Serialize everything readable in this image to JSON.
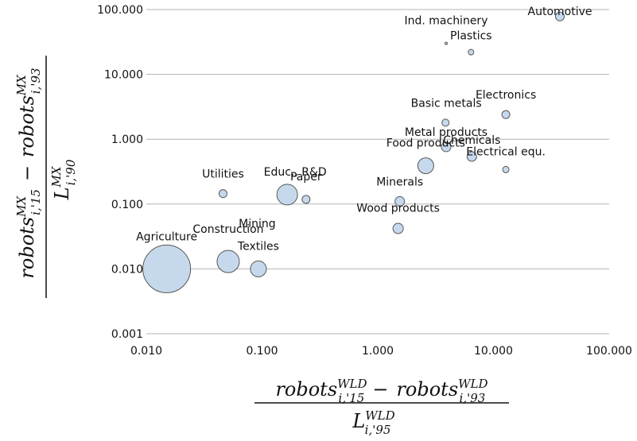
{
  "chart_data": {
    "type": "scatter",
    "x_scale": "log",
    "y_scale": "log",
    "xlim": [
      0.01,
      100
    ],
    "ylim": [
      0.001,
      100
    ],
    "x_ticks": [
      0.01,
      0.1,
      1,
      10,
      100
    ],
    "y_ticks": [
      0.001,
      0.01,
      0.1,
      1,
      10,
      100
    ],
    "x_tick_labels": [
      "0.010",
      "0.100",
      "1.000",
      "10.000",
      "100.000"
    ],
    "y_tick_labels": [
      "0.001",
      "0.010",
      "0.100",
      "1.000",
      "10.000",
      "100.000"
    ],
    "grid": "horizontal",
    "bubble_fill": "#c6d9ec",
    "bubble_stroke": "#555555",
    "grid_color": "#b3b3b3",
    "xlabel": {
      "numerator": {
        "term1": "robots",
        "term1_sup": "WLD",
        "term1_sub": "i,'15",
        "minus": "−",
        "term2": "robots",
        "term2_sup": "WLD",
        "term2_sub": "i,'93"
      },
      "denominator": {
        "term": "L",
        "sup": "WLD",
        "sub": "i,'95"
      }
    },
    "ylabel": {
      "numerator": {
        "term1": "robots",
        "term1_sup": "MX",
        "term1_sub": "i,'15",
        "minus": "−",
        "term2": "robots",
        "term2_sup": "MX",
        "term2_sub": "i,'93"
      },
      "denominator": {
        "term": "L",
        "sup": "MX",
        "sub": "i,'90"
      }
    },
    "points": [
      {
        "label": "Agriculture",
        "x": 0.015,
        "y": 0.01,
        "size": 30
      },
      {
        "label": "Construction",
        "x": 0.051,
        "y": 0.013,
        "size": 14
      },
      {
        "label": "Textiles",
        "x": 0.093,
        "y": 0.01,
        "size": 10
      },
      {
        "label": "Mining",
        "x": 0.088,
        "y": 0.028,
        "size": 0
      },
      {
        "label": "Utilities",
        "x": 0.046,
        "y": 0.145,
        "size": 5
      },
      {
        "label": "Educ., R&D",
        "x": 0.165,
        "y": 0.14,
        "size": 13
      },
      {
        "label": "Paper",
        "x": 0.24,
        "y": 0.118,
        "size": 5
      },
      {
        "label": "Minerals",
        "x": 1.55,
        "y": 0.11,
        "size": 6
      },
      {
        "label": "Wood products",
        "x": 1.5,
        "y": 0.042,
        "size": 6.5
      },
      {
        "label": "Food products",
        "x": 2.6,
        "y": 0.39,
        "size": 10
      },
      {
        "label": "Metal products",
        "x": 3.9,
        "y": 0.76,
        "size": 6
      },
      {
        "label": "Basic metals",
        "x": 3.85,
        "y": 1.8,
        "size": 4.5
      },
      {
        "label": "Chemicals",
        "x": 6.5,
        "y": 0.54,
        "size": 6
      },
      {
        "label": "Electrical equ.",
        "x": 12.8,
        "y": 0.34,
        "size": 4
      },
      {
        "label": "Electronics",
        "x": 12.8,
        "y": 2.4,
        "size": 5
      },
      {
        "label": "Ind. machinery",
        "x": 3.9,
        "y": 30.0,
        "size": 1.5
      },
      {
        "label": "Plastics",
        "x": 6.4,
        "y": 22.0,
        "size": 3.5
      },
      {
        "label": "Automotive",
        "x": 37.5,
        "y": 78.0,
        "size": 5.5
      }
    ]
  }
}
